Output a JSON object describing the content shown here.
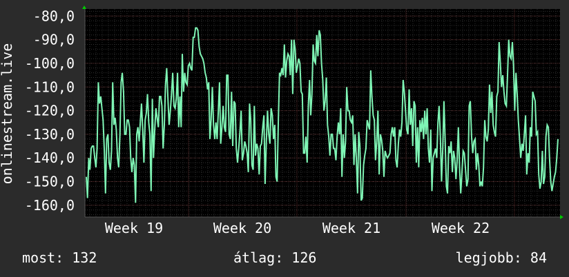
{
  "stats": {
    "current_label": "most:",
    "current_value": "132",
    "average_label": "átlag:",
    "average_value": "126",
    "best_label": "legjobb:",
    "best_value": "84"
  },
  "chart_data": {
    "type": "line",
    "ylabel": "onlinestream.live",
    "ylim": [
      -165,
      -77
    ],
    "yticks": [
      -80,
      -90,
      -100,
      -110,
      -120,
      -130,
      -140,
      -150,
      -160
    ],
    "ytick_labels": [
      "-80,0",
      "-90,0",
      "-100,0",
      "-110,0",
      "-120,0",
      "-130,0",
      "-140,0",
      "-150,0",
      "-160,0"
    ],
    "xticks": [
      "Week 19",
      "Week 20",
      "Week 21",
      "Week 22"
    ],
    "grid": true,
    "colors": {
      "background": "#2b2b2b",
      "plot_bg": "#000000",
      "line": "#7ff5b5",
      "grid": "#404040",
      "axis_arrow": "#00cc00",
      "text": "#ffffff"
    },
    "series": [
      {
        "values": [
          -148,
          -157,
          -140,
          -145,
          -136,
          -135,
          -135,
          -140,
          -144,
          -136,
          -108,
          -117,
          -114,
          -119,
          -124,
          -137,
          -155,
          -132,
          -130,
          -142,
          -145,
          -137,
          -108,
          -126,
          -123,
          -128,
          -140,
          -144,
          -130,
          -108,
          -104,
          -112,
          -130,
          -130,
          -124,
          -124,
          -127,
          -140,
          -146,
          -140,
          -143,
          -159,
          -130,
          -127,
          -133,
          -125,
          -117,
          -128,
          -142,
          -124,
          -121,
          -113,
          -125,
          -130,
          -154,
          -115,
          -140,
          -128,
          -119,
          -123,
          -127,
          -114,
          -114,
          -118,
          -136,
          -126,
          -109,
          -102,
          -115,
          -126,
          -120,
          -113,
          -104,
          -118,
          -119,
          -115,
          -104,
          -127,
          -114,
          -127,
          -96,
          -112,
          -104,
          -108,
          -109,
          -101,
          -100,
          -102,
          -103,
          -89,
          -89,
          -85,
          -85,
          -86,
          -93,
          -96,
          -97,
          -98,
          -100,
          -104,
          -106,
          -111,
          -108,
          -132,
          -124,
          -110,
          -126,
          -132,
          -125,
          -132,
          -120,
          -108,
          -134,
          -127,
          -118,
          -127,
          -129,
          -105,
          -105,
          -130,
          -132,
          -112,
          -135,
          -116,
          -117,
          -136,
          -142,
          -136,
          -129,
          -120,
          -141,
          -138,
          -133,
          -135,
          -138,
          -146,
          -117,
          -124,
          -143,
          -145,
          -118,
          -139,
          -134,
          -136,
          -147,
          -135,
          -134,
          -127,
          -122,
          -151,
          -133,
          -120,
          -130,
          -134,
          -119,
          -122,
          -132,
          -126,
          -148,
          -150,
          -124,
          -104,
          -105,
          -102,
          -105,
          -92,
          -106,
          -99,
          -96,
          -97,
          -105,
          -90,
          -113,
          -90,
          -94,
          -104,
          -101,
          -98,
          -100,
          -112,
          -113,
          -138,
          -138,
          -131,
          -142,
          -118,
          -107,
          -122,
          -113,
          -92,
          -99,
          -100,
          -88,
          -97,
          -86,
          -88,
          -100,
          -107,
          -120,
          -116,
          -106,
          -126,
          -131,
          -139,
          -130,
          -130,
          -136,
          -136,
          -141,
          -131,
          -125,
          -130,
          -119,
          -148,
          -130,
          -140,
          -133,
          -110,
          -120,
          -120,
          -124,
          -125,
          -122,
          -143,
          -130,
          -140,
          -155,
          -129,
          -135,
          -158,
          -157,
          -143,
          -139,
          -136,
          -124,
          -126,
          -128,
          -103,
          -114,
          -122,
          -124,
          -141,
          -133,
          -120,
          -147,
          -130,
          -132,
          -137,
          -148,
          -137,
          -139,
          -140,
          -139,
          -138,
          -130,
          -127,
          -131,
          -127,
          -141,
          -144,
          -134,
          -128,
          -131,
          -125,
          -107,
          -112,
          -120,
          -128,
          -130,
          -111,
          -126,
          -119,
          -135,
          -116,
          -118,
          -142,
          -127,
          -144,
          -124,
          -129,
          -123,
          -132,
          -120,
          -130,
          -119,
          -136,
          -142,
          -128,
          -154,
          -140,
          -138,
          -136,
          -140,
          -125,
          -118,
          -131,
          -150,
          -136,
          -116,
          -132,
          -152,
          -155,
          -135,
          -138,
          -133,
          -146,
          -137,
          -140,
          -149,
          -141,
          -127,
          -144,
          -155,
          -146,
          -137,
          -138,
          -145,
          -152,
          -149,
          -118,
          -116,
          -131,
          -138,
          -133,
          -132,
          -145,
          -138,
          -143,
          -152,
          -150,
          -152,
          -144,
          -124,
          -131,
          -133,
          -128,
          -109,
          -121,
          -112,
          -126,
          -129,
          -131,
          -114,
          -112,
          -91,
          -100,
          -110,
          -105,
          -112,
          -117,
          -118,
          -105,
          -90,
          -97,
          -98,
          -91,
          -101,
          -120,
          -104,
          -113,
          -124,
          -132,
          -140,
          -134,
          -137,
          -130,
          -122,
          -147,
          -138,
          -142,
          -127,
          -131,
          -112,
          -114,
          -116,
          -130,
          -129,
          -147,
          -153,
          -150,
          -137,
          -151,
          -148,
          -131,
          -126,
          -127,
          -140,
          -150,
          -154,
          -151,
          -148,
          -146,
          -140,
          -132
        ]
      }
    ]
  }
}
